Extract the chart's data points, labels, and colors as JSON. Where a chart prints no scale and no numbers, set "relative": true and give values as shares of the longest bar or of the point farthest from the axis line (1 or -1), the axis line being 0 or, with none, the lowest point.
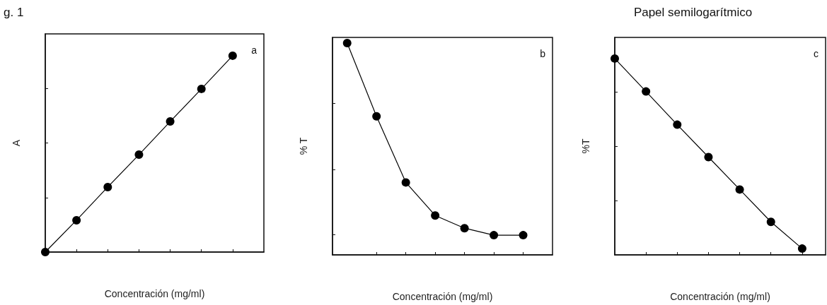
{
  "chart_data": [
    {
      "type": "line",
      "title": "g. 1",
      "xlabel": "Concentración (mg/ml)",
      "ylabel": "A",
      "annotations": [
        "a"
      ],
      "categories": [
        null,
        null,
        null,
        null,
        null,
        null,
        null
      ],
      "relative": true,
      "marker": "circle",
      "line_style": "solid",
      "series": [
        {
          "color": "#000000",
          "values": [
            0,
            0.162,
            0.331,
            0.496,
            0.665,
            0.831,
            1
          ]
        }
      ]
    },
    {
      "type": "line",
      "xlabel": "Concentración (mg/ml)",
      "ylabel": "% T",
      "annotations": [
        "b"
      ],
      "categories": [
        null,
        null,
        null,
        null,
        null,
        null,
        null
      ],
      "relative": true,
      "marker": "circle",
      "line_style": "solid",
      "series": [
        {
          "color": "#000000",
          "values": [
            1,
            0.654,
            0.342,
            0.186,
            0.126,
            0.093,
            0.093
          ]
        }
      ]
    },
    {
      "type": "line",
      "title": "Papel semilogarítmico",
      "xlabel": "Concentración (mg/ml)",
      "ylabel": "%T",
      "annotations": [
        "c"
      ],
      "categories": [
        null,
        null,
        null,
        null,
        null,
        null,
        null
      ],
      "relative": true,
      "marker": "circle",
      "line_style": "solid",
      "series": [
        {
          "color": "#000000",
          "values": [
            1,
            0.832,
            0.663,
            0.498,
            0.333,
            0.168,
            0.032
          ]
        }
      ]
    }
  ]
}
